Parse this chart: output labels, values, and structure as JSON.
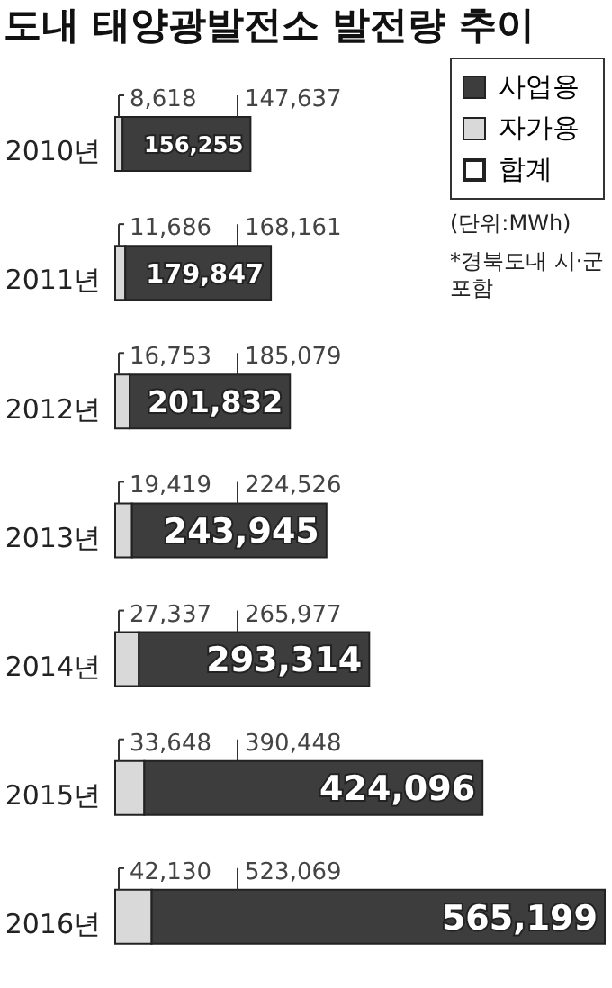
{
  "chart_data": {
    "type": "bar",
    "title": "도내 태양광발전소 발전량 추이",
    "orientation": "horizontal",
    "stacked": true,
    "categories": [
      "2010년",
      "2011년",
      "2012년",
      "2013년",
      "2014년",
      "2015년",
      "2016년"
    ],
    "series": [
      {
        "name": "자가용",
        "color": "#d9d9d9",
        "values": [
          8618,
          11686,
          16753,
          19419,
          27337,
          33648,
          42130
        ],
        "value_labels": [
          "8,618",
          "11,686",
          "16,753",
          "19,419",
          "27,337",
          "33,648",
          "42,130"
        ]
      },
      {
        "name": "사업용",
        "color": "#3d3d3d",
        "values": [
          147637,
          168161,
          185079,
          224526,
          265977,
          390448,
          523069
        ],
        "value_labels": [
          "147,637",
          "168,161",
          "185,079",
          "224,526",
          "265,977",
          "390,448",
          "523,069"
        ]
      }
    ],
    "totals": [
      "156,255",
      "179,847",
      "201,832",
      "243,945",
      "293,314",
      "424,096",
      "565,199"
    ],
    "legend": "top right",
    "annotations": [
      "합계",
      "(단위:MWh)",
      "*경북도내 시·군 포함"
    ]
  }
}
